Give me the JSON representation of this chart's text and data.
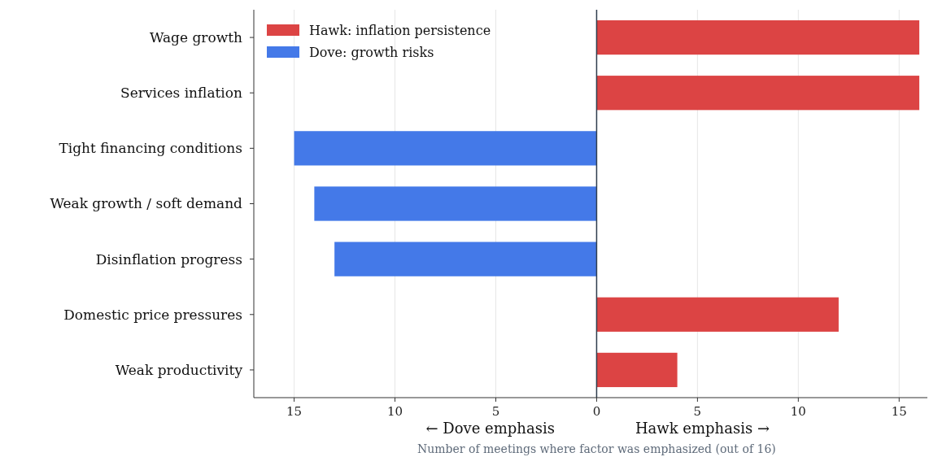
{
  "chart_data": {
    "type": "bar",
    "orientation": "horizontal",
    "xlabel": "Number of meetings where factor was emphasized (out of 16)",
    "annotations": [
      "← Dove emphasis",
      "Hawk emphasis →"
    ],
    "categories": [
      "Wage growth",
      "Services inflation",
      "Tight financing conditions",
      "Weak growth / soft demand",
      "Disinflation progress",
      "Domestic price pressures",
      "Weak productivity"
    ],
    "series": [
      {
        "name": "Hawk: inflation persistence",
        "color": "#dc4444",
        "values": [
          16,
          16,
          null,
          null,
          null,
          12,
          4
        ]
      },
      {
        "name": "Dove: growth risks",
        "color": "#4479e8",
        "values": [
          null,
          null,
          -15,
          -14,
          -13,
          null,
          null
        ]
      }
    ],
    "xlim": [
      -17,
      16.4
    ],
    "xticks": [
      {
        "value": -15,
        "label": "15"
      },
      {
        "value": -10,
        "label": "10"
      },
      {
        "value": -5,
        "label": "5"
      },
      0,
      5,
      10,
      15
    ],
    "ref_lines": [
      {
        "axis": "x",
        "value": 0,
        "color": "#2f3e4e"
      }
    ],
    "grid": "x",
    "legend": "top left"
  }
}
